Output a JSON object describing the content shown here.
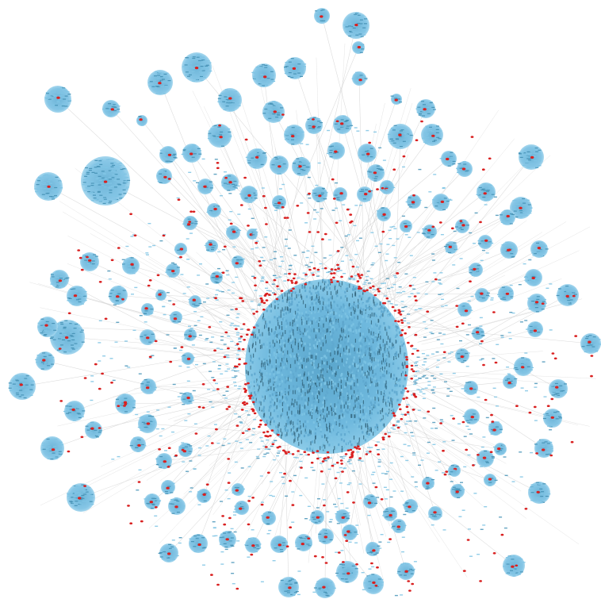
{
  "graph": {
    "colors": {
      "background": "#ffffff",
      "edge": "#d4d4d4",
      "leaf_node": "#7fc4e4",
      "leaf_node_dark": "#4a95b8",
      "hub_node": "#d92020",
      "cluster_core": "#6bb8dc"
    },
    "labels_visible": false
  }
}
